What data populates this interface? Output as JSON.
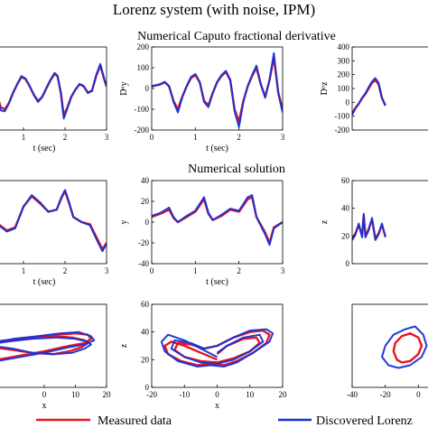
{
  "figure": {
    "title": "Lorenz system (with noise, IPM)",
    "row1_title": "Numerical Caputo fractional derivative",
    "row2_title": "Numerical solution"
  },
  "colors": {
    "measured": "#e8141e",
    "discovered": "#1630d6",
    "axis": "#000000"
  },
  "legend": {
    "items": [
      {
        "label": "Measured data",
        "color": "#e8141e"
      },
      {
        "label": "Discovered Lorenz",
        "color": "#1630d6"
      }
    ],
    "placement": "bottom"
  },
  "chart_data": [
    {
      "id": "r1c1",
      "type": "line",
      "xlabel": "t (sec)",
      "ylabel": "",
      "xlim": [
        0,
        3
      ],
      "ylim": [
        -200,
        200
      ],
      "xticks": [
        1,
        2,
        3
      ],
      "xtick_labels": [
        "1",
        "2",
        "3"
      ],
      "yticks": [],
      "ytick_labels": [],
      "series": [
        {
          "color": "#e8141e",
          "x": [
            0,
            0.15,
            0.3,
            0.38,
            0.45,
            0.55,
            0.65,
            0.75,
            0.85,
            0.95,
            1.05,
            1.15,
            1.25,
            1.35,
            1.45,
            1.55,
            1.65,
            1.75,
            1.82,
            1.9,
            1.97,
            2.05,
            2.15,
            2.25,
            2.35,
            2.45,
            2.55,
            2.65,
            2.75,
            2.85,
            2.95,
            3.0
          ],
          "y": [
            30,
            20,
            5,
            -40,
            -90,
            -100,
            -70,
            -20,
            20,
            55,
            45,
            10,
            -30,
            -60,
            -40,
            0,
            40,
            70,
            60,
            -20,
            -130,
            -95,
            -40,
            -5,
            20,
            10,
            -20,
            -10,
            60,
            110,
            40,
            10
          ]
        },
        {
          "color": "#1630d6",
          "x": [
            0,
            0.15,
            0.3,
            0.38,
            0.45,
            0.55,
            0.65,
            0.75,
            0.85,
            0.95,
            1.05,
            1.15,
            1.25,
            1.35,
            1.45,
            1.55,
            1.65,
            1.75,
            1.82,
            1.9,
            1.97,
            2.05,
            2.15,
            2.25,
            2.35,
            2.45,
            2.55,
            2.65,
            2.75,
            2.85,
            2.95,
            3.0
          ],
          "y": [
            32,
            22,
            6,
            -45,
            -105,
            -110,
            -72,
            -22,
            22,
            60,
            48,
            12,
            -32,
            -65,
            -42,
            2,
            42,
            75,
            62,
            -25,
            -145,
            -100,
            -42,
            -6,
            22,
            12,
            -22,
            -12,
            65,
            118,
            42,
            12
          ]
        }
      ]
    },
    {
      "id": "r1c2",
      "type": "line",
      "xlabel": "t (sec)",
      "ylabel": "Dᵅy",
      "xlim": [
        0,
        3
      ],
      "ylim": [
        -200,
        200
      ],
      "xticks": [
        0,
        1,
        2,
        3
      ],
      "xtick_labels": [
        "0",
        "1",
        "2",
        "3"
      ],
      "yticks": [
        -200,
        -100,
        0,
        100,
        200
      ],
      "ytick_labels": [
        "-200",
        "-100",
        "0",
        "100",
        "200"
      ],
      "series": [
        {
          "color": "#e8141e",
          "x": [
            0,
            0.1,
            0.2,
            0.3,
            0.4,
            0.5,
            0.6,
            0.7,
            0.8,
            0.9,
            1.0,
            1.1,
            1.2,
            1.3,
            1.4,
            1.5,
            1.6,
            1.7,
            1.8,
            1.9,
            2.0,
            2.1,
            2.2,
            2.3,
            2.4,
            2.5,
            2.6,
            2.7,
            2.8,
            2.9,
            3.0
          ],
          "y": [
            10,
            15,
            20,
            30,
            10,
            -60,
            -100,
            -40,
            10,
            50,
            65,
            30,
            -60,
            -80,
            -20,
            30,
            60,
            80,
            40,
            -100,
            -160,
            -60,
            10,
            60,
            100,
            20,
            -40,
            40,
            150,
            -20,
            -100
          ]
        },
        {
          "color": "#1630d6",
          "x": [
            0,
            0.1,
            0.2,
            0.3,
            0.4,
            0.5,
            0.6,
            0.7,
            0.8,
            0.9,
            1.0,
            1.1,
            1.2,
            1.3,
            1.4,
            1.5,
            1.6,
            1.7,
            1.8,
            1.9,
            2.0,
            2.1,
            2.2,
            2.3,
            2.4,
            2.5,
            2.6,
            2.7,
            2.8,
            2.9,
            3.0
          ],
          "y": [
            12,
            16,
            22,
            32,
            12,
            -65,
            -115,
            -45,
            12,
            55,
            70,
            32,
            -65,
            -90,
            -22,
            32,
            65,
            85,
            42,
            -110,
            -185,
            -65,
            12,
            65,
            110,
            22,
            -45,
            42,
            170,
            -25,
            -115
          ]
        }
      ]
    },
    {
      "id": "r1c3",
      "type": "line",
      "xlabel": "",
      "ylabel": "Dᵅz",
      "xlim": [
        0,
        3
      ],
      "ylim": [
        -200,
        400
      ],
      "xticks": [],
      "xtick_labels": [],
      "yticks": [
        -200,
        -100,
        0,
        100,
        200,
        300,
        400
      ],
      "ytick_labels": [
        "-200",
        "-100",
        "0",
        "100",
        "200",
        "300",
        "400"
      ],
      "series": [
        {
          "color": "#e8141e",
          "x": [
            0,
            0.1,
            0.2,
            0.3,
            0.4,
            0.5,
            0.6,
            0.7,
            0.8,
            0.9,
            1.0
          ],
          "y": [
            -80,
            -40,
            -10,
            30,
            60,
            100,
            140,
            160,
            130,
            30,
            -20
          ]
        },
        {
          "color": "#1630d6",
          "x": [
            0,
            0.1,
            0.2,
            0.3,
            0.4,
            0.5,
            0.6,
            0.7,
            0.8,
            0.9,
            1.0
          ],
          "y": [
            -90,
            -45,
            -12,
            32,
            65,
            110,
            150,
            175,
            140,
            35,
            -25
          ]
        }
      ]
    },
    {
      "id": "r2c1",
      "type": "line",
      "xlabel": "t (sec)",
      "ylabel": "",
      "xlim": [
        0,
        3
      ],
      "ylim": [
        -40,
        40
      ],
      "xticks": [
        1,
        2,
        3
      ],
      "xtick_labels": [
        "1",
        "2",
        "3"
      ],
      "yticks": [],
      "ytick_labels": [],
      "series": [
        {
          "color": "#e8141e",
          "x": [
            0,
            0.2,
            0.4,
            0.6,
            0.8,
            1.0,
            1.2,
            1.4,
            1.6,
            1.8,
            1.9,
            2.0,
            2.1,
            2.2,
            2.4,
            2.6,
            2.8,
            2.9,
            3.0
          ],
          "y": [
            12,
            8,
            -2,
            -8,
            -5,
            15,
            25,
            18,
            10,
            12,
            22,
            30,
            18,
            5,
            0,
            -2,
            -18,
            -26,
            -20
          ]
        },
        {
          "color": "#1630d6",
          "x": [
            0,
            0.2,
            0.4,
            0.6,
            0.8,
            1.0,
            1.2,
            1.4,
            1.6,
            1.8,
            1.9,
            2.0,
            2.1,
            2.2,
            2.4,
            2.6,
            2.8,
            2.9,
            3.0
          ],
          "y": [
            12,
            8,
            -3,
            -9,
            -6,
            15,
            26,
            19,
            10,
            12,
            23,
            31,
            19,
            5,
            0,
            -3,
            -20,
            -28,
            -21
          ]
        }
      ]
    },
    {
      "id": "r2c2",
      "type": "line",
      "xlabel": "t (sec)",
      "ylabel": "y",
      "xlim": [
        0,
        3
      ],
      "ylim": [
        -40,
        40
      ],
      "xticks": [
        0,
        1,
        2,
        3
      ],
      "xtick_labels": [
        "0",
        "1",
        "2",
        "3"
      ],
      "yticks": [
        -40,
        -20,
        0,
        20,
        40
      ],
      "ytick_labels": [
        "-40",
        "-20",
        "0",
        "20",
        "40"
      ],
      "series": [
        {
          "color": "#e8141e",
          "x": [
            0,
            0.2,
            0.4,
            0.5,
            0.6,
            0.8,
            1.0,
            1.2,
            1.3,
            1.4,
            1.6,
            1.8,
            2.0,
            2.2,
            2.3,
            2.4,
            2.6,
            2.7,
            2.8,
            3.0
          ],
          "y": [
            5,
            8,
            12,
            4,
            0,
            5,
            10,
            22,
            8,
            2,
            6,
            12,
            10,
            22,
            24,
            5,
            -10,
            -20,
            -5,
            0
          ]
        },
        {
          "color": "#1630d6",
          "x": [
            0,
            0.2,
            0.4,
            0.5,
            0.6,
            0.8,
            1.0,
            1.2,
            1.3,
            1.4,
            1.6,
            1.8,
            2.0,
            2.2,
            2.3,
            2.4,
            2.6,
            2.7,
            2.8,
            3.0
          ],
          "y": [
            6,
            9,
            14,
            5,
            0,
            6,
            11,
            24,
            9,
            2,
            7,
            13,
            11,
            24,
            26,
            5,
            -12,
            -22,
            -6,
            0
          ]
        }
      ]
    },
    {
      "id": "r2c3",
      "type": "line",
      "xlabel": "",
      "ylabel": "z",
      "xlim": [
        0,
        3
      ],
      "ylim": [
        0,
        60
      ],
      "xticks": [],
      "xtick_labels": [],
      "yticks": [
        0,
        20,
        40,
        60
      ],
      "ytick_labels": [
        "0",
        "20",
        "40",
        "60"
      ],
      "series": [
        {
          "color": "#e8141e",
          "x": [
            0,
            0.1,
            0.2,
            0.3,
            0.35,
            0.4,
            0.5,
            0.6,
            0.7,
            0.8,
            0.9,
            1.0
          ],
          "y": [
            18,
            22,
            28,
            20,
            35,
            20,
            25,
            32,
            18,
            22,
            28,
            20
          ]
        },
        {
          "color": "#1630d6",
          "x": [
            0,
            0.1,
            0.2,
            0.3,
            0.35,
            0.4,
            0.5,
            0.6,
            0.7,
            0.8,
            0.9,
            1.0
          ],
          "y": [
            17,
            21,
            29,
            19,
            36,
            19,
            24,
            33,
            17,
            21,
            29,
            19
          ]
        }
      ]
    },
    {
      "id": "r3c1",
      "type": "line",
      "xlabel": "x",
      "ylabel": "",
      "xlim": [
        -20,
        20
      ],
      "ylim": [
        0,
        60
      ],
      "xticks": [
        0,
        10,
        20
      ],
      "xtick_labels": [
        "0",
        "10",
        "20"
      ],
      "yticks": [],
      "ytick_labels": [],
      "series": [
        {
          "color": "#e8141e",
          "x": [
            -20,
            -10,
            0,
            8,
            13,
            15,
            14,
            10,
            4,
            -2,
            -10,
            -20,
            -10,
            -4,
            3,
            8,
            12,
            14,
            13,
            9,
            3,
            -4,
            -12,
            -20
          ],
          "y": [
            18,
            22,
            26,
            30,
            32,
            35,
            38,
            39,
            38,
            36,
            34,
            30,
            27,
            25,
            24,
            26,
            29,
            32,
            34,
            36,
            37,
            36,
            34,
            32
          ]
        },
        {
          "color": "#1630d6",
          "x": [
            -20,
            -10,
            0,
            8,
            13,
            16,
            15,
            11,
            5,
            -2,
            -10,
            -20,
            -10,
            -4,
            3,
            9,
            13,
            15,
            14,
            10,
            4,
            -4,
            -12,
            -20
          ],
          "y": [
            17,
            21,
            25,
            29,
            31,
            34,
            37,
            40,
            39,
            37,
            35,
            31,
            28,
            25,
            24,
            25,
            28,
            31,
            33,
            35,
            36,
            35,
            33,
            31
          ]
        }
      ]
    },
    {
      "id": "r3c2",
      "type": "line",
      "xlabel": "x",
      "ylabel": "z",
      "xlim": [
        -20,
        20
      ],
      "ylim": [
        0,
        60
      ],
      "xticks": [
        -20,
        -10,
        0,
        10,
        20
      ],
      "xtick_labels": [
        "-20",
        "-10",
        "0",
        "10",
        "20"
      ],
      "yticks": [
        0,
        20,
        40,
        60
      ],
      "ytick_labels": [
        "0",
        "20",
        "40",
        "60"
      ],
      "series": [
        {
          "color": "#e8141e",
          "x": [
            0,
            -5,
            -10,
            -14,
            -16,
            -15,
            -11,
            -6,
            -2,
            2,
            6,
            11,
            15,
            16,
            14,
            10,
            5,
            0,
            -4,
            -8,
            -12,
            -13,
            -10,
            -5,
            0,
            5,
            10,
            13,
            12,
            8,
            3,
            0
          ],
          "y": [
            20,
            25,
            30,
            33,
            30,
            24,
            19,
            16,
            17,
            16,
            19,
            25,
            32,
            38,
            41,
            40,
            36,
            30,
            28,
            31,
            32,
            27,
            22,
            19,
            18,
            21,
            26,
            32,
            36,
            35,
            30,
            24
          ]
        },
        {
          "color": "#1630d6",
          "x": [
            0,
            -5,
            -10,
            -15,
            -17,
            -16,
            -12,
            -6,
            -2,
            2,
            6,
            11,
            16,
            17,
            15,
            10,
            5,
            0,
            -4,
            -8,
            -13,
            -14,
            -10,
            -5,
            0,
            5,
            10,
            14,
            13,
            8,
            3,
            0
          ],
          "y": [
            22,
            28,
            34,
            38,
            33,
            26,
            19,
            15,
            16,
            15,
            18,
            25,
            33,
            39,
            42,
            41,
            36,
            30,
            28,
            32,
            34,
            28,
            22,
            18,
            17,
            20,
            26,
            33,
            38,
            36,
            30,
            25
          ]
        }
      ]
    },
    {
      "id": "r3c3",
      "type": "line",
      "xlabel": "",
      "ylabel": "",
      "xlim": [
        -40,
        20
      ],
      "ylim": [
        0,
        60
      ],
      "xticks": [
        -40,
        -20,
        0
      ],
      "xtick_labels": [
        "-40",
        "-20",
        "0"
      ],
      "yticks": [],
      "ytick_labels": [],
      "series": [
        {
          "color": "#e8141e",
          "x": [
            -10,
            -5,
            0,
            2,
            0,
            -5,
            -10,
            -14,
            -15,
            -13,
            -10
          ],
          "y": [
            18,
            19,
            24,
            30,
            36,
            39,
            37,
            32,
            26,
            20,
            18
          ]
        },
        {
          "color": "#1630d6",
          "x": [
            -12,
            -5,
            2,
            5,
            3,
            -2,
            -8,
            -15,
            -20,
            -22,
            -18,
            -12
          ],
          "y": [
            14,
            16,
            22,
            30,
            38,
            44,
            42,
            38,
            30,
            22,
            16,
            14
          ]
        }
      ]
    }
  ]
}
